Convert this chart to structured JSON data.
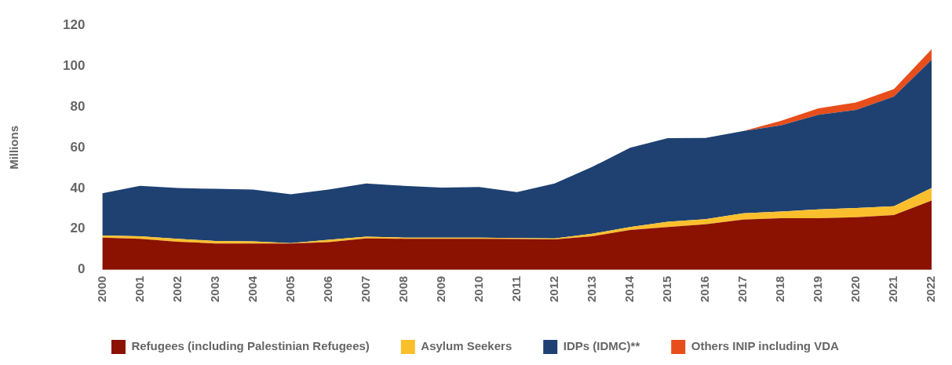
{
  "chart_data": {
    "type": "area",
    "stacked": true,
    "ylabel": "Millions",
    "ylim": [
      0,
      120
    ],
    "yticks": [
      0,
      20,
      40,
      60,
      80,
      100,
      120
    ],
    "grid": false,
    "legend": "bottom",
    "categories": [
      "2000",
      "2001",
      "2002",
      "2003",
      "2004",
      "2005",
      "2006",
      "2007",
      "2008",
      "2009",
      "2010",
      "2011",
      "2012",
      "2013",
      "2014",
      "2015",
      "2016",
      "2017",
      "2018",
      "2019",
      "2020",
      "2021",
      "2022"
    ],
    "series": [
      {
        "name": "Refugees (including Palestinian Refugees)",
        "color": "#8b1100",
        "values": [
          15.8,
          15.2,
          13.7,
          12.9,
          12.9,
          12.9,
          13.5,
          15.4,
          15.2,
          15.2,
          15.2,
          15.1,
          14.9,
          16.4,
          19.5,
          21.0,
          22.3,
          24.6,
          25.3,
          25.3,
          25.8,
          26.8,
          34.0
        ]
      },
      {
        "name": "Asylum Seekers",
        "color": "#fbbf2d",
        "values": [
          1.0,
          1.2,
          1.5,
          1.2,
          1.0,
          0.2,
          1.2,
          0.8,
          0.6,
          0.6,
          0.6,
          0.5,
          0.5,
          1.3,
          1.5,
          2.6,
          2.5,
          3.1,
          3.3,
          4.3,
          4.5,
          4.4,
          6.1
        ]
      },
      {
        "name": "IDPs (IDMC)**",
        "color": "#1e4172",
        "values": [
          20.7,
          24.8,
          24.9,
          25.6,
          25.5,
          23.9,
          24.7,
          26.1,
          25.4,
          24.5,
          24.8,
          22.5,
          26.9,
          32.8,
          38.9,
          41.0,
          39.9,
          40.4,
          42.3,
          46.5,
          48.2,
          53.8,
          62.9
        ]
      },
      {
        "name": "Others INIP including VDA",
        "color": "#e84e1b",
        "values": [
          null,
          null,
          null,
          null,
          null,
          null,
          null,
          null,
          null,
          null,
          null,
          null,
          null,
          null,
          null,
          null,
          null,
          0,
          2.2,
          3.1,
          3.6,
          3.7,
          5.2
        ]
      }
    ]
  }
}
